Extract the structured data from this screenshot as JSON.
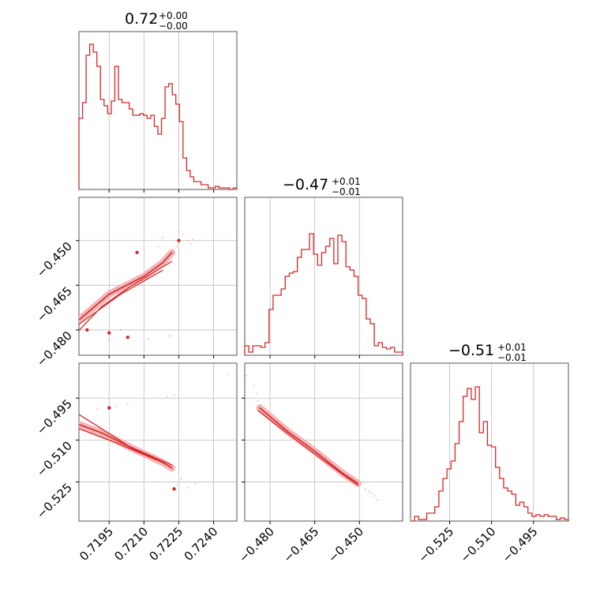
{
  "colors": {
    "accent": "#d62728",
    "fill_light": "#f4b6b8"
  },
  "titles": [
    {
      "value": "0.72",
      "plus": "+0.00",
      "minus": "−0.00"
    },
    {
      "value": "−0.47",
      "plus": "+0.01",
      "minus": "−0.01"
    },
    {
      "value": "−0.51",
      "plus": "+0.01",
      "minus": "−0.01"
    }
  ],
  "chart_data": {
    "type": "corner",
    "parameters": [
      {
        "range": [
          0.7182,
          0.725
        ],
        "ticks": [
          0.7195,
          0.721,
          0.7225,
          0.724
        ],
        "tick_labels": [
          "0.7195",
          "0.7210",
          "0.7225",
          "0.7240"
        ]
      },
      {
        "range": [
          -0.4885,
          -0.4355
        ],
        "ticks": [
          -0.48,
          -0.465,
          -0.45
        ],
        "tick_labels": [
          "−0.480",
          "−0.465",
          "−0.450"
        ]
      },
      {
        "range": [
          -0.539,
          -0.4825
        ],
        "ticks": [
          -0.525,
          -0.51,
          -0.495
        ],
        "tick_labels": [
          "−0.525",
          "−0.510",
          "−0.495"
        ]
      }
    ],
    "histograms": [
      [
        0.45,
        0.55,
        0.85,
        0.92,
        0.87,
        0.78,
        0.57,
        0.53,
        0.48,
        0.56,
        0.78,
        0.57,
        0.55,
        0.55,
        0.51,
        0.47,
        0.47,
        0.48,
        0.47,
        0.45,
        0.47,
        0.4,
        0.35,
        0.45,
        0.65,
        0.67,
        0.6,
        0.54,
        0.43,
        0.2,
        0.12,
        0.08,
        0.05,
        0.05,
        0.03,
        0.03,
        0.01,
        0.01,
        0.02,
        0.01,
        0.01,
        0.01,
        0.0,
        0.01
      ],
      [
        0.06,
        0.02,
        0.06,
        0.06,
        0.05,
        0.08,
        0.29,
        0.38,
        0.38,
        0.42,
        0.5,
        0.52,
        0.53,
        0.62,
        0.67,
        0.67,
        0.77,
        0.64,
        0.57,
        0.65,
        0.69,
        0.74,
        0.58,
        0.76,
        0.72,
        0.56,
        0.54,
        0.5,
        0.38,
        0.36,
        0.23,
        0.2,
        0.06,
        0.08,
        0.05,
        0.04,
        0.05,
        0.02,
        0.02
      ],
      [
        0.0,
        0.03,
        0.01,
        0.01,
        0.05,
        0.05,
        0.09,
        0.19,
        0.27,
        0.33,
        0.38,
        0.49,
        0.63,
        0.79,
        0.84,
        0.77,
        0.85,
        0.56,
        0.63,
        0.48,
        0.47,
        0.34,
        0.27,
        0.21,
        0.19,
        0.17,
        0.1,
        0.12,
        0.09,
        0.05,
        0.03,
        0.04,
        0.03,
        0.04,
        0.03,
        0.03,
        0.01,
        0.02,
        0.01
      ]
    ],
    "contours": {
      "p0_p1": [
        [
          [
            0.71822,
            -0.4765
          ],
          [
            0.7195,
            -0.468
          ],
          [
            0.721,
            -0.462
          ],
          [
            0.7218,
            -0.4575
          ],
          [
            0.7222,
            -0.454
          ]
        ],
        [
          [
            0.71822,
            -0.48
          ],
          [
            0.7192,
            -0.472
          ],
          [
            0.7205,
            -0.465
          ],
          [
            0.7222,
            -0.457
          ]
        ],
        [
          [
            0.71822,
            -0.478
          ],
          [
            0.72,
            -0.468
          ],
          [
            0.7218,
            -0.46
          ]
        ]
      ],
      "p0_p2": [
        [
          [
            0.71822,
            -0.5045
          ],
          [
            0.7192,
            -0.5075
          ],
          [
            0.7205,
            -0.513
          ],
          [
            0.7218,
            -0.518
          ],
          [
            0.7222,
            -0.52
          ]
        ],
        [
          [
            0.71822,
            -0.501
          ],
          [
            0.719,
            -0.505
          ],
          [
            0.7203,
            -0.512
          ],
          [
            0.7222,
            -0.519
          ]
        ],
        [
          [
            0.71822,
            -0.506
          ],
          [
            0.7198,
            -0.511
          ],
          [
            0.7215,
            -0.517
          ]
        ]
      ],
      "p1_p2": [
        [
          [
            -0.4835,
            -0.4985
          ],
          [
            -0.474,
            -0.507
          ],
          [
            -0.465,
            -0.514
          ],
          [
            -0.4555,
            -0.522
          ],
          [
            -0.4505,
            -0.5255
          ]
        ],
        [
          [
            -0.484,
            -0.4995
          ],
          [
            -0.47,
            -0.511
          ],
          [
            -0.456,
            -0.522
          ],
          [
            -0.4505,
            -0.5262
          ]
        ]
      ]
    },
    "scatter": {
      "p0_p1": [
        [
          0.7227,
          -0.448
        ],
        [
          0.7225,
          -0.447
        ],
        [
          0.7231,
          -0.4495
        ],
        [
          0.723,
          -0.451
        ],
        [
          0.7224,
          -0.452
        ],
        [
          0.7218,
          -0.449
        ],
        [
          0.7221,
          -0.482
        ],
        [
          0.7212,
          -0.483
        ],
        [
          0.72,
          -0.48
        ],
        [
          0.7195,
          -0.4835
        ],
        [
          0.7216,
          -0.452
        ],
        [
          0.7229,
          -0.45
        ]
      ],
      "p0_p2": [
        [
          0.7246,
          -0.4865
        ],
        [
          0.7223,
          -0.494
        ],
        [
          0.722,
          -0.4945
        ],
        [
          0.7203,
          -0.497
        ],
        [
          0.7198,
          -0.498
        ],
        [
          0.719,
          -0.499
        ],
        [
          0.7229,
          -0.527
        ],
        [
          0.7232,
          -0.5255
        ],
        [
          0.7224,
          -0.526
        ],
        [
          0.7226,
          -0.524
        ]
      ],
      "p1_p2": [
        [
          -0.4855,
          -0.4905
        ],
        [
          -0.4845,
          -0.4935
        ],
        [
          -0.484,
          -0.496
        ],
        [
          -0.483,
          -0.4975
        ],
        [
          -0.448,
          -0.5275
        ],
        [
          -0.447,
          -0.5285
        ],
        [
          -0.446,
          -0.529
        ],
        [
          -0.445,
          -0.53
        ],
        [
          -0.444,
          -0.5315
        ],
        [
          -0.488,
          -0.487
        ]
      ]
    },
    "points": {
      "p0_p1": [
        [
          0.7225,
          -0.45
        ],
        [
          0.7207,
          -0.454
        ],
        [
          0.7203,
          -0.4825
        ],
        [
          0.7195,
          -0.481
        ],
        [
          0.71855,
          -0.48
        ]
      ],
      "p0_p2": [
        [
          0.7195,
          -0.4985
        ],
        [
          0.7223,
          -0.5275
        ]
      ]
    }
  }
}
